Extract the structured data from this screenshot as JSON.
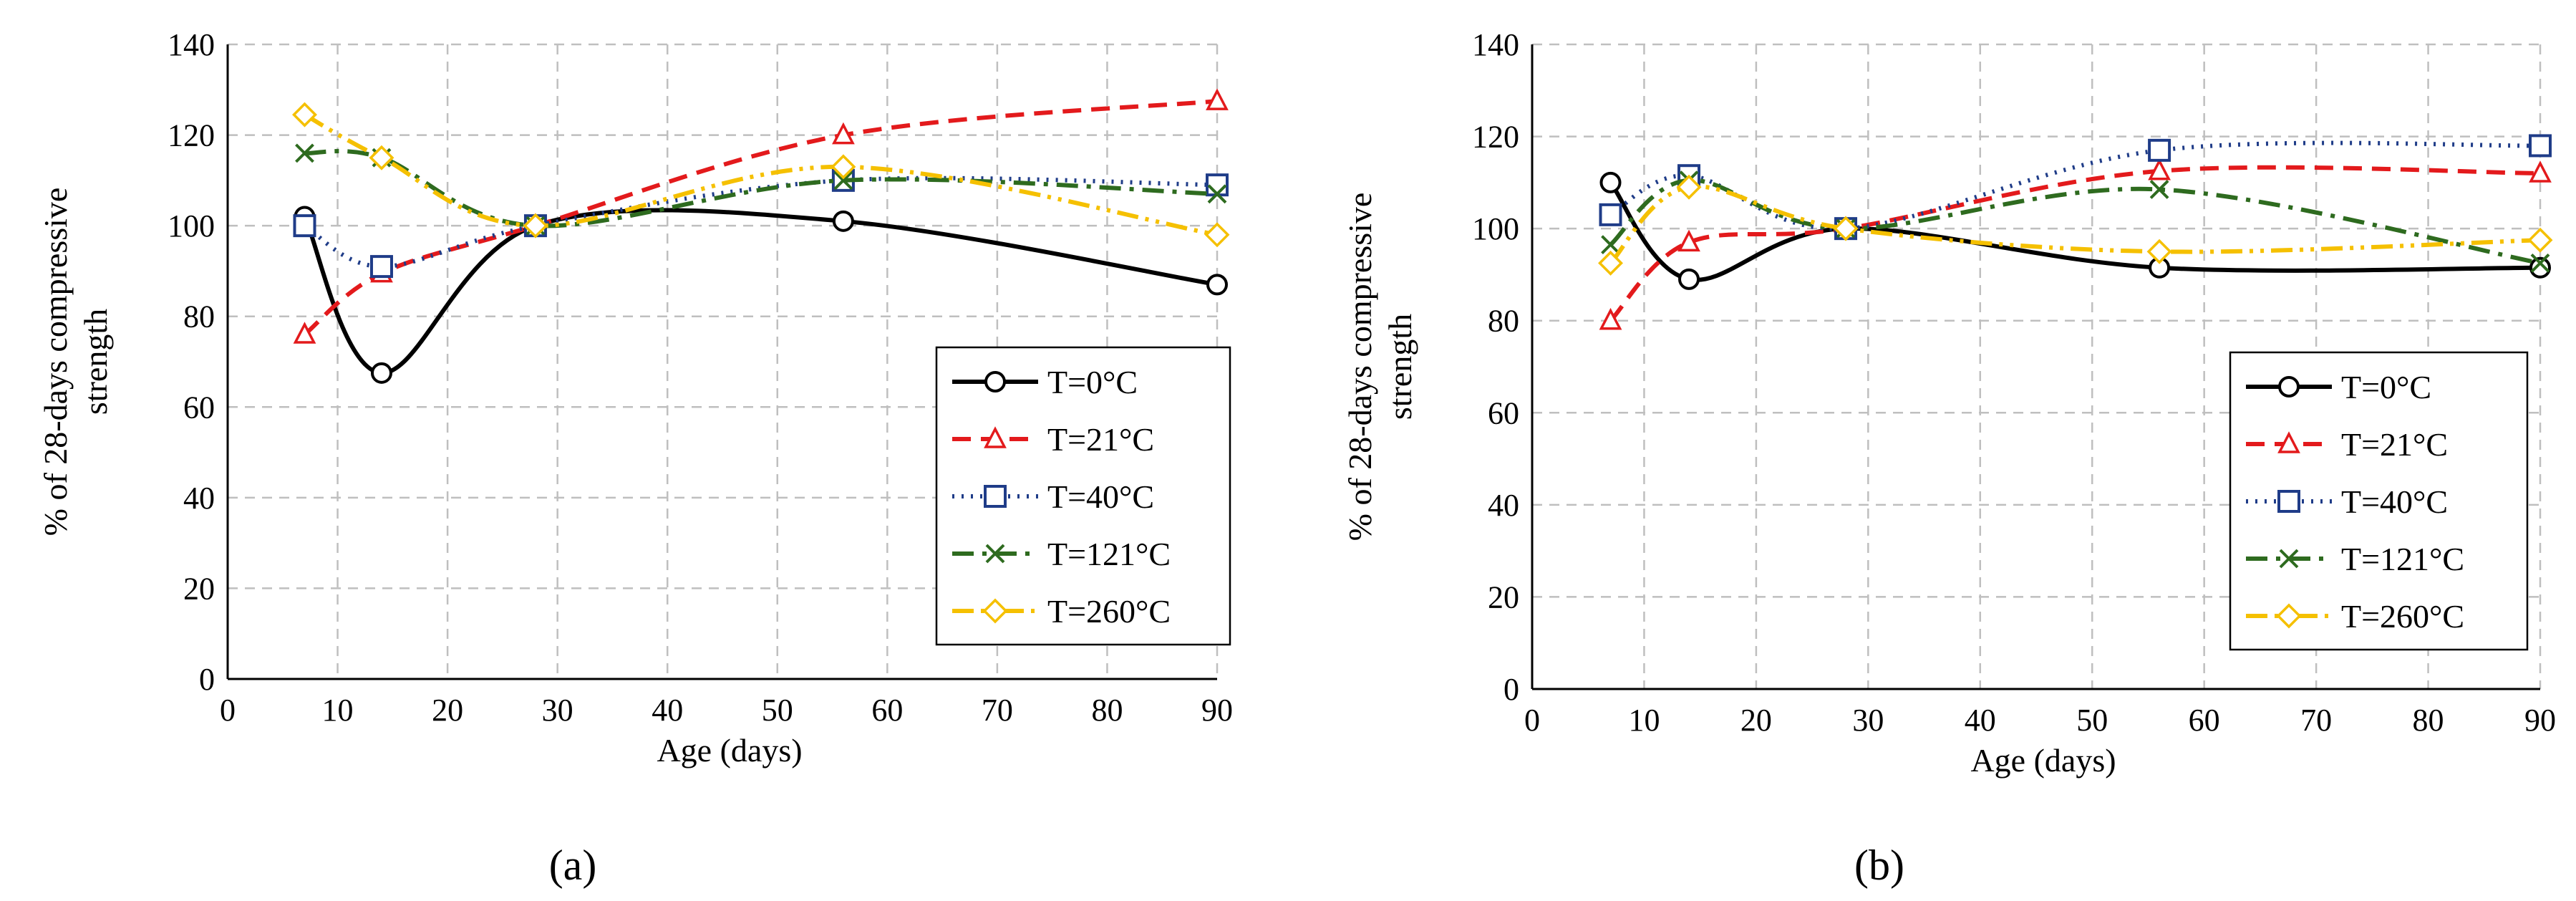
{
  "colors": {
    "T0": "#000000",
    "T21": "#e31a1c",
    "T40": "#1f3c88",
    "T121": "#2e6b1f",
    "T260": "#f5c000",
    "grid": "#bfbfbf"
  },
  "chart_data": [
    {
      "type": "line",
      "panel_label": "(a)",
      "xlabel": "Age (days)",
      "ylabel": "% of 28-days compressive strength",
      "ylabel_lines": [
        "% of 28-days compressive",
        "strength"
      ],
      "xlim": [
        0,
        90
      ],
      "ylim": [
        0,
        140
      ],
      "xticks": [
        0,
        10,
        20,
        30,
        40,
        50,
        60,
        70,
        80,
        90
      ],
      "yticks": [
        0,
        20,
        40,
        60,
        80,
        100,
        120,
        140
      ],
      "grid": true,
      "legend_position": "bottom-right",
      "x": [
        7,
        14,
        28,
        56,
        90
      ],
      "series": [
        {
          "key": "T0",
          "name": "T=0°C",
          "marker": "circle",
          "dash": "solid",
          "values": [
            102,
            67.5,
            100,
            101,
            87
          ]
        },
        {
          "key": "T21",
          "name": "T=21°C",
          "marker": "triangle",
          "dash": "dashed",
          "values": [
            76,
            89.5,
            100,
            120,
            127.5
          ]
        },
        {
          "key": "T40",
          "name": "T=40°C",
          "marker": "square",
          "dash": "dotted",
          "values": [
            100,
            91,
            100,
            110,
            109
          ]
        },
        {
          "key": "T121",
          "name": "T=121°C",
          "marker": "x",
          "dash": "dashdot",
          "values": [
            116,
            115,
            100,
            110,
            107
          ]
        },
        {
          "key": "T260",
          "name": "T=260°C",
          "marker": "diamond",
          "dash": "dashdotdot",
          "values": [
            124.5,
            115,
            100,
            113,
            98
          ]
        }
      ]
    },
    {
      "type": "line",
      "panel_label": "(b)",
      "xlabel": "Age (days)",
      "ylabel": "% of 28-days compressive strength",
      "ylabel_lines": [
        "% of 28-days compressive",
        "strength"
      ],
      "xlim": [
        0,
        90
      ],
      "ylim": [
        0,
        140
      ],
      "xticks": [
        0,
        10,
        20,
        30,
        40,
        50,
        60,
        70,
        80,
        90
      ],
      "yticks": [
        0,
        20,
        40,
        60,
        80,
        100,
        120,
        140
      ],
      "grid": true,
      "legend_position": "bottom-right",
      "x": [
        7,
        14,
        28,
        56,
        90
      ],
      "series": [
        {
          "key": "T0",
          "name": "T=0°C",
          "marker": "circle",
          "dash": "solid",
          "values": [
            110,
            89,
            100,
            91.5,
            91.5
          ]
        },
        {
          "key": "T21",
          "name": "T=21°C",
          "marker": "triangle",
          "dash": "dashed",
          "values": [
            80,
            97,
            100,
            112.5,
            112
          ]
        },
        {
          "key": "T40",
          "name": "T=40°C",
          "marker": "square",
          "dash": "dotted",
          "values": [
            103,
            111.5,
            100,
            117,
            118
          ]
        },
        {
          "key": "T121",
          "name": "T=121°C",
          "marker": "x",
          "dash": "dashdot",
          "values": [
            96.5,
            110.5,
            100,
            108.5,
            92.5
          ]
        },
        {
          "key": "T260",
          "name": "T=260°C",
          "marker": "diamond",
          "dash": "dashdotdot",
          "values": [
            92.5,
            109,
            100,
            95,
            97.5
          ]
        }
      ]
    }
  ]
}
